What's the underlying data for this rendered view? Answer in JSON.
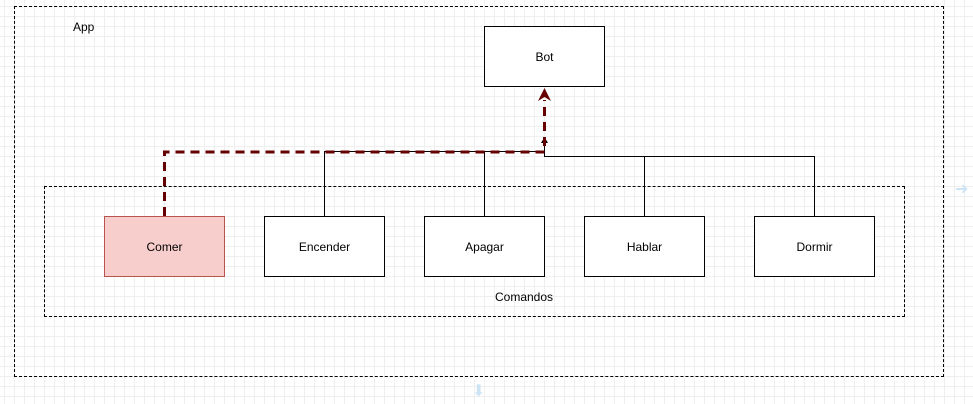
{
  "app_group": {
    "label": "App"
  },
  "bot": {
    "label": "Bot"
  },
  "commands_group": {
    "label": "Comandos"
  },
  "commands": [
    {
      "label": "Comer",
      "highlighted": true
    },
    {
      "label": "Encender",
      "highlighted": false
    },
    {
      "label": "Apagar",
      "highlighted": false
    },
    {
      "label": "Hablar",
      "highlighted": false
    },
    {
      "label": "Dormir",
      "highlighted": false
    }
  ],
  "colors": {
    "highlight_fill": "#f8cecc",
    "highlight_stroke": "#b85450",
    "highlight_edge": "#660000",
    "line": "#000000"
  }
}
